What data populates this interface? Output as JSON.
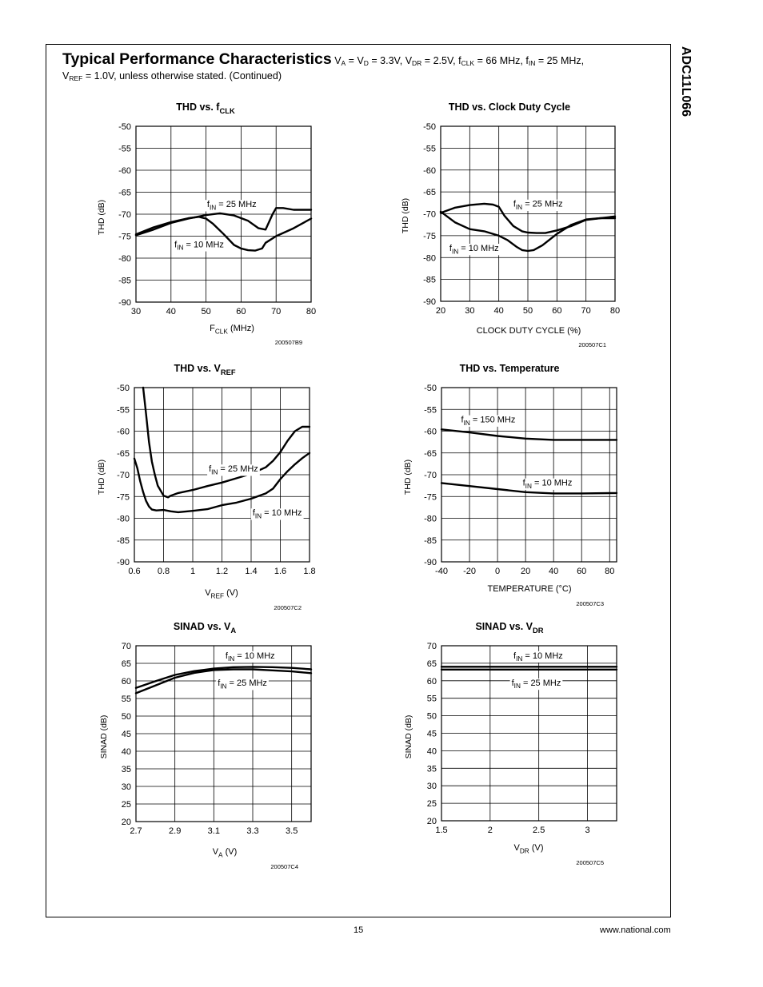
{
  "side_title": "ADC11L066",
  "header": {
    "title": "Typical Performance Characteristics",
    "cond_parts": [
      {
        "t": " V"
      },
      {
        "s": "A"
      },
      {
        "t": " = V"
      },
      {
        "s": "D"
      },
      {
        "t": " = 3.3V, V"
      },
      {
        "s": "DR"
      },
      {
        "t": " = 2.5V, f"
      },
      {
        "s": "CLK"
      },
      {
        "t": " = 66 MHz, f"
      },
      {
        "s": "IN"
      },
      {
        "t": " = 25 MHz,"
      }
    ],
    "cond_parts2": [
      {
        "t": "V"
      },
      {
        "s": "REF"
      },
      {
        "t": " = 1.0V, unless otherwise stated.  (Continued)"
      }
    ]
  },
  "footer": {
    "page": "15",
    "url": "www.national.com"
  },
  "chart_data": [
    {
      "id": "c1",
      "type": "line",
      "title": "THD vs. f",
      "title_sub": "CLK",
      "xlabel": "F",
      "xlabel_sub": "CLK",
      "xlabel_tail": " (MHz)",
      "ylabel": "THD (dB)",
      "xlim": [
        30,
        80
      ],
      "ylim": [
        -90,
        -50
      ],
      "xticks": [
        30,
        40,
        50,
        60,
        70,
        80
      ],
      "yticks": [
        -50,
        -55,
        -60,
        -65,
        -70,
        -75,
        -80,
        -85,
        -90
      ],
      "figure_id": "200507B9",
      "series": [
        {
          "name": "f IN = 25 MHz",
          "x": [
            30,
            35,
            40,
            45,
            50,
            54,
            58,
            62,
            65,
            67,
            69,
            70,
            72,
            75,
            80
          ],
          "y": [
            -74.8,
            -73.5,
            -72,
            -71,
            -70.2,
            -69.8,
            -70.3,
            -71.5,
            -73.2,
            -73.5,
            -70,
            -68.6,
            -68.6,
            -69,
            -69
          ]
        },
        {
          "name": "f IN = 10 MHz",
          "x": [
            30,
            35,
            40,
            45,
            48,
            50,
            52,
            55,
            58,
            60,
            62,
            64,
            66,
            67,
            70,
            75,
            80
          ],
          "y": [
            -74.6,
            -73,
            -71.8,
            -70.9,
            -70.6,
            -71,
            -72.2,
            -74.5,
            -77,
            -77.8,
            -78.2,
            -78.3,
            -77.8,
            -76.5,
            -75,
            -73.2,
            -71
          ]
        }
      ],
      "annotations": [
        {
          "text": "f",
          "sub": "IN",
          "tail": " = 25 MHz",
          "x": 50.3,
          "y": -68.4
        },
        {
          "text": "f",
          "sub": "IN",
          "tail": " = 10 MHz",
          "x": 41,
          "y": -77.5
        }
      ]
    },
    {
      "id": "c2",
      "type": "line",
      "title": "THD vs. Clock Duty Cycle",
      "title_sub": "",
      "xlabel": "CLOCK DUTY CYCLE (%)",
      "xlabel_sub": "",
      "xlabel_tail": "",
      "ylabel": "THD (dB)",
      "xlim": [
        20,
        80
      ],
      "ylim": [
        -90,
        -50
      ],
      "xticks": [
        20,
        30,
        40,
        50,
        60,
        70,
        80
      ],
      "yticks": [
        -50,
        -55,
        -60,
        -65,
        -70,
        -75,
        -80,
        -85,
        -90
      ],
      "figure_id": "200507C1",
      "series": [
        {
          "name": "f IN = 25 MHz",
          "x": [
            20,
            25,
            30,
            35,
            38,
            40,
            42,
            45,
            48,
            50,
            53,
            56,
            60,
            65,
            70,
            75,
            80
          ],
          "y": [
            -69.8,
            -68.6,
            -68,
            -67.7,
            -67.9,
            -68.4,
            -70.5,
            -72.8,
            -74,
            -74.3,
            -74.4,
            -74.4,
            -73.8,
            -72.8,
            -71.4,
            -71,
            -71
          ]
        },
        {
          "name": "f IN = 10 MHz",
          "x": [
            20,
            25,
            30,
            35,
            40,
            43,
            46,
            48,
            50,
            52,
            55,
            60,
            65,
            70,
            75,
            80
          ],
          "y": [
            -69.5,
            -72,
            -73.5,
            -74,
            -75,
            -76,
            -77.5,
            -78.3,
            -78.5,
            -78.3,
            -77.2,
            -74.6,
            -72.5,
            -71.3,
            -71,
            -70.6
          ]
        }
      ],
      "annotations": [
        {
          "text": "f",
          "sub": "IN",
          "tail": " = 25 MHz",
          "x": 45,
          "y": -68.4
        },
        {
          "text": "f",
          "sub": "IN",
          "tail": " = 10 MHz",
          "x": 23,
          "y": -78.5
        }
      ]
    },
    {
      "id": "c3",
      "type": "line",
      "title": "THD vs. V",
      "title_sub": "REF",
      "xlabel": "V",
      "xlabel_sub": "REF",
      "xlabel_tail": " (V)",
      "ylabel": "THD (dB)",
      "xlim": [
        0.6,
        1.8
      ],
      "ylim": [
        -90,
        -50
      ],
      "xticks": [
        0.6,
        0.8,
        1,
        1.2,
        1.4,
        1.6,
        1.8
      ],
      "xtick_labels": [
        "0.6",
        "0.8",
        "1",
        "1.2",
        "1.4",
        "1.6",
        "1.8"
      ],
      "yticks": [
        -50,
        -55,
        -60,
        -65,
        -70,
        -75,
        -80,
        -85,
        -90
      ],
      "figure_id": "200507C2",
      "series": [
        {
          "name": "f IN = 25 MHz",
          "x": [
            0.66,
            0.68,
            0.7,
            0.72,
            0.74,
            0.76,
            0.8,
            0.83,
            0.85,
            0.9,
            1,
            1.1,
            1.2,
            1.3,
            1.4,
            1.5,
            1.55,
            1.6,
            1.65,
            1.7,
            1.75,
            1.8
          ],
          "y": [
            -50,
            -56,
            -62.5,
            -67,
            -70,
            -72.5,
            -74.8,
            -75.2,
            -74.8,
            -74.2,
            -73.5,
            -72.6,
            -71.8,
            -70.8,
            -69.8,
            -68.3,
            -66.8,
            -64.8,
            -62.2,
            -60,
            -59,
            -59
          ]
        },
        {
          "name": "f IN = 10 MHz",
          "x": [
            0.6,
            0.62,
            0.64,
            0.66,
            0.68,
            0.7,
            0.72,
            0.75,
            0.8,
            0.85,
            0.9,
            1,
            1.1,
            1.2,
            1.3,
            1.4,
            1.5,
            1.55,
            1.6,
            1.65,
            1.7,
            1.75,
            1.8
          ],
          "y": [
            -66.3,
            -68.5,
            -71.5,
            -74,
            -76,
            -77.3,
            -78,
            -78.2,
            -78.1,
            -78.4,
            -78.6,
            -78.3,
            -77.9,
            -77,
            -76.4,
            -75.5,
            -74.3,
            -73.2,
            -71,
            -69.2,
            -67.6,
            -66.2,
            -65
          ]
        }
      ],
      "annotations": [
        {
          "text": "f",
          "sub": "IN",
          "tail": " = 25 MHz",
          "x": 1.11,
          "y": -69.3
        },
        {
          "text": "f",
          "sub": "IN",
          "tail": " = 10 MHz",
          "x": 1.41,
          "y": -79.4
        }
      ]
    },
    {
      "id": "c4",
      "type": "line",
      "title": "THD vs. Temperature",
      "title_sub": "",
      "xlabel": "TEMPERATURE (°C)",
      "xlabel_sub": "",
      "xlabel_tail": "",
      "ylabel": "THD (dB)",
      "xlim": [
        -40,
        85
      ],
      "ylim": [
        -90,
        -50
      ],
      "xticks": [
        -40,
        -20,
        0,
        20,
        40,
        60,
        80
      ],
      "yticks": [
        -50,
        -55,
        -60,
        -65,
        -70,
        -75,
        -80,
        -85,
        -90
      ],
      "figure_id": "200507C3",
      "series": [
        {
          "name": "f IN = 150 MHz",
          "x": [
            -40,
            -20,
            0,
            20,
            40,
            60,
            85
          ],
          "y": [
            -59.6,
            -60.3,
            -61.1,
            -61.7,
            -62,
            -62,
            -62
          ]
        },
        {
          "name": "f IN = 10 MHz",
          "x": [
            -40,
            -20,
            0,
            20,
            40,
            60,
            85
          ],
          "y": [
            -71.9,
            -72.6,
            -73.3,
            -74,
            -74.3,
            -74.3,
            -74.2
          ]
        }
      ],
      "annotations": [
        {
          "text": "f",
          "sub": "IN",
          "tail": " = 150 MHz",
          "x": -26,
          "y": -58
        },
        {
          "text": "f",
          "sub": "IN",
          "tail": " = 10 MHz",
          "x": 18,
          "y": -72.5
        }
      ]
    },
    {
      "id": "c5",
      "type": "line",
      "title": "SINAD vs. V",
      "title_sub": "A",
      "xlabel": "V",
      "xlabel_sub": "A",
      "xlabel_tail": " (V)",
      "ylabel": "SINAD (dB)",
      "xlim": [
        2.7,
        3.6
      ],
      "ylim": [
        20,
        70
      ],
      "xticks": [
        2.7,
        2.9,
        3.1,
        3.3,
        3.5
      ],
      "xtick_labels": [
        "2.7",
        "2.9",
        "3.1",
        "3.3",
        "3.5"
      ],
      "yticks": [
        70,
        65,
        60,
        55,
        50,
        45,
        40,
        35,
        30,
        25,
        20
      ],
      "figure_id": "200507C4",
      "series": [
        {
          "name": "fIN = 10 MHz",
          "x": [
            2.7,
            2.8,
            2.9,
            3.0,
            3.1,
            3.2,
            3.3,
            3.4,
            3.5,
            3.6
          ],
          "y": [
            58,
            59.9,
            61.7,
            62.8,
            63.5,
            63.9,
            64,
            63.9,
            63.7,
            63.3
          ]
        },
        {
          "name": "fIN = 25 MHz",
          "x": [
            2.7,
            2.8,
            2.9,
            3.0,
            3.1,
            3.2,
            3.3,
            3.4,
            3.5,
            3.6
          ],
          "y": [
            56.5,
            58.7,
            60.9,
            62.3,
            63.1,
            63.3,
            63.3,
            63,
            62.7,
            62.2
          ]
        }
      ],
      "annotations": [
        {
          "text": "f",
          "sub": "IN",
          "tail": " = 10 MHz",
          "x": 3.16,
          "y": 66.4
        },
        {
          "text": "f",
          "sub": "IN",
          "tail": " = 25 MHz",
          "x": 3.12,
          "y": 58.6
        }
      ]
    },
    {
      "id": "c6",
      "type": "line",
      "title": "SINAD vs. V",
      "title_sub": "DR",
      "xlabel": "V",
      "xlabel_sub": "DR",
      "xlabel_tail": " (V)",
      "ylabel": "SINAD (dB)",
      "xlim": [
        1.5,
        3.3
      ],
      "ylim": [
        20,
        70
      ],
      "xticks": [
        1.5,
        2,
        2.5,
        3
      ],
      "xtick_labels": [
        "1.5",
        "2",
        "2.5",
        "3"
      ],
      "yticks": [
        70,
        65,
        60,
        55,
        50,
        45,
        40,
        35,
        30,
        25,
        20
      ],
      "figure_id": "200507C5",
      "series": [
        {
          "name": "fIN = 10 MHz",
          "x": [
            1.5,
            3.3
          ],
          "y": [
            64,
            64
          ]
        },
        {
          "name": "fIN = 25 MHz",
          "x": [
            1.5,
            3.3
          ],
          "y": [
            63.2,
            63.2
          ]
        }
      ],
      "annotations": [
        {
          "text": "f",
          "sub": "IN",
          "tail": " = 10 MHz",
          "x": 2.24,
          "y": 66.4
        },
        {
          "text": "f",
          "sub": "IN",
          "tail": " = 25 MHz",
          "x": 2.22,
          "y": 58.6
        }
      ]
    }
  ]
}
